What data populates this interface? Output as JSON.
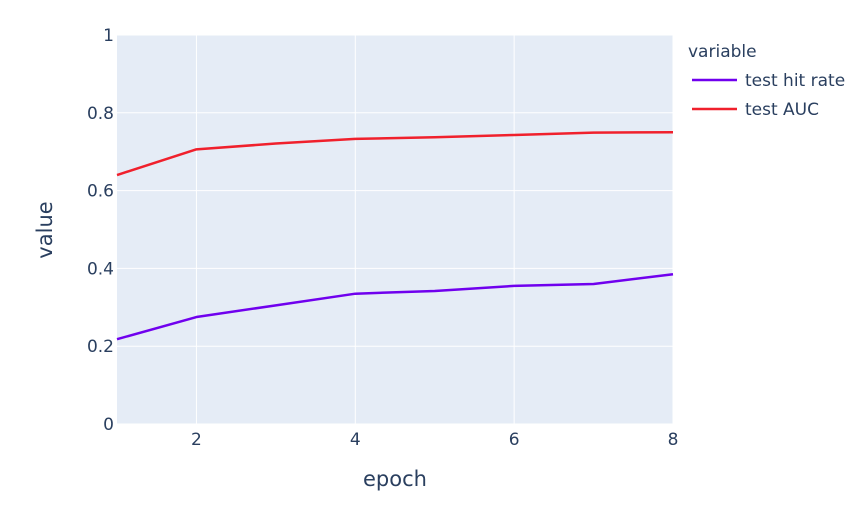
{
  "chart_data": {
    "type": "line",
    "xlabel": "epoch",
    "ylabel": "value",
    "xlim": [
      1,
      8
    ],
    "ylim": [
      0,
      1
    ],
    "x_ticks": [
      2,
      4,
      6,
      8
    ],
    "y_ticks": [
      0,
      0.2,
      0.4,
      0.6,
      0.8,
      1
    ],
    "x_tick_labels": [
      "2",
      "4",
      "6",
      "8"
    ],
    "y_tick_labels": [
      "0",
      "0.2",
      "0.4",
      "0.6",
      "0.8",
      "1"
    ],
    "grid": true,
    "legend": {
      "title": "variable",
      "placement": "right"
    },
    "x": [
      1,
      2,
      3,
      4,
      5,
      6,
      7,
      8
    ],
    "series": [
      {
        "name": "test hit rate",
        "color": "#7000ee",
        "values": [
          0.218,
          0.275,
          0.305,
          0.335,
          0.342,
          0.355,
          0.36,
          0.385
        ]
      },
      {
        "name": "test AUC",
        "color": "#f0202c",
        "values": [
          0.64,
          0.706,
          0.721,
          0.733,
          0.737,
          0.743,
          0.749,
          0.75
        ]
      }
    ],
    "colors": {
      "plot_background": "#e5ecf6",
      "gridline": "#ffffff",
      "text": "#2a3f5f"
    }
  }
}
